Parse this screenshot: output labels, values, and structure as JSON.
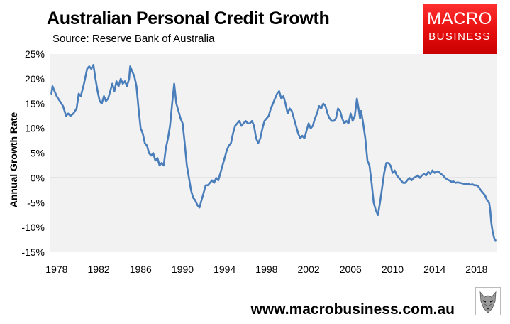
{
  "header": {
    "title": "Australian Personal Credit Growth",
    "source": "Source: Reserve Bank of Australia"
  },
  "logo": {
    "line1": "MACRO",
    "line2": "BUSINESS",
    "color": "#e31b1b"
  },
  "footer": {
    "website": "www.macrobusiness.com.au",
    "emblem_icon": "wolf-icon"
  },
  "chart_data": {
    "type": "line",
    "title": "Australian Personal Credit Growth",
    "subtitle": "Source: Reserve Bank of Australia",
    "xlabel": "",
    "ylabel": "Annual Growth Rate",
    "xlim": [
      1977.4,
      2019.9
    ],
    "ylim": [
      -15,
      25
    ],
    "yticks": [
      -15,
      -10,
      -5,
      0,
      5,
      10,
      15,
      20,
      25
    ],
    "ytick_labels": [
      "-15%",
      "-10%",
      "-5%",
      "0%",
      "5%",
      "10%",
      "15%",
      "20%",
      "25%"
    ],
    "xticks": [
      1978,
      1982,
      1986,
      1990,
      1994,
      1998,
      2002,
      2006,
      2010,
      2014,
      2018
    ],
    "xtick_labels": [
      "1978",
      "1982",
      "1986",
      "1990",
      "1994",
      "1998",
      "2002",
      "2006",
      "2010",
      "2014",
      "2018"
    ],
    "grid": false,
    "zero_line": true,
    "line_color": "#4a7ebb",
    "plot_background": "#f2f2f2",
    "series": [
      {
        "values": [
          [
            1977.5,
            17
          ],
          [
            1977.6,
            18.5
          ],
          [
            1977.8,
            17.5
          ],
          [
            1978.0,
            16.5
          ],
          [
            1978.3,
            15.5
          ],
          [
            1978.6,
            14.5
          ],
          [
            1978.9,
            12.5
          ],
          [
            1979.1,
            13
          ],
          [
            1979.3,
            12.5
          ],
          [
            1979.6,
            13
          ],
          [
            1979.9,
            14
          ],
          [
            1980.1,
            17
          ],
          [
            1980.3,
            16.5
          ],
          [
            1980.6,
            19
          ],
          [
            1980.9,
            22
          ],
          [
            1981.1,
            22.5
          ],
          [
            1981.3,
            22
          ],
          [
            1981.5,
            22.8
          ],
          [
            1981.7,
            20
          ],
          [
            1981.9,
            17.5
          ],
          [
            1982.1,
            15.5
          ],
          [
            1982.3,
            15
          ],
          [
            1982.5,
            16.5
          ],
          [
            1982.7,
            15.5
          ],
          [
            1982.9,
            16
          ],
          [
            1983.1,
            17.5
          ],
          [
            1983.3,
            19
          ],
          [
            1983.5,
            17.5
          ],
          [
            1983.7,
            19.5
          ],
          [
            1983.9,
            18.5
          ],
          [
            1984.1,
            20
          ],
          [
            1984.3,
            19
          ],
          [
            1984.5,
            19.5
          ],
          [
            1984.7,
            18.5
          ],
          [
            1984.9,
            20
          ],
          [
            1985.0,
            22.5
          ],
          [
            1985.2,
            21.5
          ],
          [
            1985.4,
            20.5
          ],
          [
            1985.6,
            18.5
          ],
          [
            1985.8,
            14
          ],
          [
            1986.0,
            10
          ],
          [
            1986.2,
            9
          ],
          [
            1986.4,
            7
          ],
          [
            1986.6,
            6.5
          ],
          [
            1986.8,
            5
          ],
          [
            1987.0,
            4.5
          ],
          [
            1987.2,
            5
          ],
          [
            1987.4,
            3.5
          ],
          [
            1987.6,
            4
          ],
          [
            1987.8,
            2.5
          ],
          [
            1988.0,
            3
          ],
          [
            1988.2,
            2.5
          ],
          [
            1988.4,
            6
          ],
          [
            1988.6,
            8
          ],
          [
            1988.8,
            10.5
          ],
          [
            1989.0,
            15
          ],
          [
            1989.2,
            19
          ],
          [
            1989.4,
            15
          ],
          [
            1989.6,
            13.5
          ],
          [
            1989.8,
            12
          ],
          [
            1990.0,
            11
          ],
          [
            1990.2,
            7
          ],
          [
            1990.4,
            2.5
          ],
          [
            1990.6,
            0
          ],
          [
            1990.8,
            -2.5
          ],
          [
            1991.0,
            -4
          ],
          [
            1991.2,
            -4.5
          ],
          [
            1991.4,
            -5.5
          ],
          [
            1991.6,
            -6
          ],
          [
            1991.8,
            -4.5
          ],
          [
            1992.0,
            -3
          ],
          [
            1992.2,
            -1.5
          ],
          [
            1992.4,
            -1.5
          ],
          [
            1992.6,
            -1
          ],
          [
            1992.8,
            -0.5
          ],
          [
            1993.0,
            -1
          ],
          [
            1993.2,
            0
          ],
          [
            1993.4,
            -0.5
          ],
          [
            1993.6,
            1
          ],
          [
            1993.8,
            2.5
          ],
          [
            1994.0,
            4
          ],
          [
            1994.2,
            5.5
          ],
          [
            1994.4,
            6.5
          ],
          [
            1994.6,
            7
          ],
          [
            1994.8,
            9
          ],
          [
            1995.0,
            10.5
          ],
          [
            1995.2,
            11
          ],
          [
            1995.4,
            11.5
          ],
          [
            1995.6,
            10.5
          ],
          [
            1995.8,
            11
          ],
          [
            1996.0,
            11.5
          ],
          [
            1996.2,
            11
          ],
          [
            1996.4,
            11
          ],
          [
            1996.6,
            11.5
          ],
          [
            1996.8,
            10.5
          ],
          [
            1997.0,
            8
          ],
          [
            1997.2,
            7
          ],
          [
            1997.4,
            8
          ],
          [
            1997.6,
            10
          ],
          [
            1997.8,
            11.5
          ],
          [
            1998.0,
            12
          ],
          [
            1998.2,
            12.5
          ],
          [
            1998.4,
            14
          ],
          [
            1998.6,
            15
          ],
          [
            1998.8,
            16
          ],
          [
            1999.0,
            17
          ],
          [
            1999.2,
            17.5
          ],
          [
            1999.4,
            16
          ],
          [
            1999.6,
            16.5
          ],
          [
            1999.8,
            15
          ],
          [
            2000.0,
            13
          ],
          [
            2000.2,
            14
          ],
          [
            2000.4,
            13.5
          ],
          [
            2000.6,
            12
          ],
          [
            2000.8,
            10.5
          ],
          [
            2001.0,
            9
          ],
          [
            2001.2,
            8
          ],
          [
            2001.4,
            8.5
          ],
          [
            2001.6,
            8
          ],
          [
            2001.8,
            9.5
          ],
          [
            2002.0,
            11
          ],
          [
            2002.2,
            10
          ],
          [
            2002.4,
            10.5
          ],
          [
            2002.6,
            12
          ],
          [
            2002.8,
            13
          ],
          [
            2003.0,
            14.5
          ],
          [
            2003.2,
            14
          ],
          [
            2003.4,
            15
          ],
          [
            2003.6,
            14.5
          ],
          [
            2003.8,
            13
          ],
          [
            2004.0,
            12
          ],
          [
            2004.2,
            11.5
          ],
          [
            2004.4,
            11.5
          ],
          [
            2004.6,
            12
          ],
          [
            2004.8,
            14
          ],
          [
            2005.0,
            13.5
          ],
          [
            2005.2,
            12
          ],
          [
            2005.4,
            11
          ],
          [
            2005.6,
            11.5
          ],
          [
            2005.8,
            11
          ],
          [
            2006.0,
            13
          ],
          [
            2006.2,
            11.5
          ],
          [
            2006.4,
            12.5
          ],
          [
            2006.6,
            16
          ],
          [
            2006.8,
            13.5
          ],
          [
            2006.9,
            12
          ],
          [
            2007.0,
            13.5
          ],
          [
            2007.2,
            11
          ],
          [
            2007.4,
            8
          ],
          [
            2007.6,
            3.5
          ],
          [
            2007.8,
            2.5
          ],
          [
            2008.0,
            -1
          ],
          [
            2008.2,
            -5
          ],
          [
            2008.4,
            -6.5
          ],
          [
            2008.6,
            -7.5
          ],
          [
            2008.8,
            -5
          ],
          [
            2009.0,
            -2
          ],
          [
            2009.2,
            1
          ],
          [
            2009.4,
            3
          ],
          [
            2009.6,
            3
          ],
          [
            2009.8,
            2.5
          ],
          [
            2010.0,
            1
          ],
          [
            2010.2,
            1.5
          ],
          [
            2010.4,
            0.5
          ],
          [
            2010.6,
            0
          ],
          [
            2010.8,
            -0.5
          ],
          [
            2011.0,
            -1
          ],
          [
            2011.2,
            -1
          ],
          [
            2011.4,
            -0.5
          ],
          [
            2011.6,
            0
          ],
          [
            2011.8,
            -0.5
          ],
          [
            2012.0,
            0
          ],
          [
            2012.2,
            0.2
          ],
          [
            2012.4,
            0.5
          ],
          [
            2012.6,
            0
          ],
          [
            2012.8,
            0.5
          ],
          [
            2013.0,
            0.8
          ],
          [
            2013.2,
            0.5
          ],
          [
            2013.4,
            1.2
          ],
          [
            2013.6,
            0.8
          ],
          [
            2013.8,
            1.5
          ],
          [
            2014.0,
            1
          ],
          [
            2014.2,
            1.3
          ],
          [
            2014.4,
            1.2
          ],
          [
            2014.6,
            0.8
          ],
          [
            2014.8,
            0.5
          ],
          [
            2015.0,
            0
          ],
          [
            2015.2,
            -0.3
          ],
          [
            2015.4,
            -0.5
          ],
          [
            2015.6,
            -0.8
          ],
          [
            2015.8,
            -0.7
          ],
          [
            2016.0,
            -1
          ],
          [
            2016.2,
            -0.9
          ],
          [
            2016.4,
            -1
          ],
          [
            2016.6,
            -1.1
          ],
          [
            2016.8,
            -1.2
          ],
          [
            2017.0,
            -1.3
          ],
          [
            2017.2,
            -1.2
          ],
          [
            2017.4,
            -1.4
          ],
          [
            2017.6,
            -1.3
          ],
          [
            2017.8,
            -1.5
          ],
          [
            2018.0,
            -1.5
          ],
          [
            2018.2,
            -1.8
          ],
          [
            2018.4,
            -2.5
          ],
          [
            2018.6,
            -3
          ],
          [
            2018.8,
            -3.5
          ],
          [
            2019.0,
            -4.5
          ],
          [
            2019.2,
            -5
          ],
          [
            2019.3,
            -6.5
          ],
          [
            2019.4,
            -9
          ],
          [
            2019.5,
            -10.5
          ],
          [
            2019.6,
            -11.5
          ],
          [
            2019.7,
            -12.3
          ],
          [
            2019.8,
            -12.6
          ]
        ]
      }
    ]
  }
}
